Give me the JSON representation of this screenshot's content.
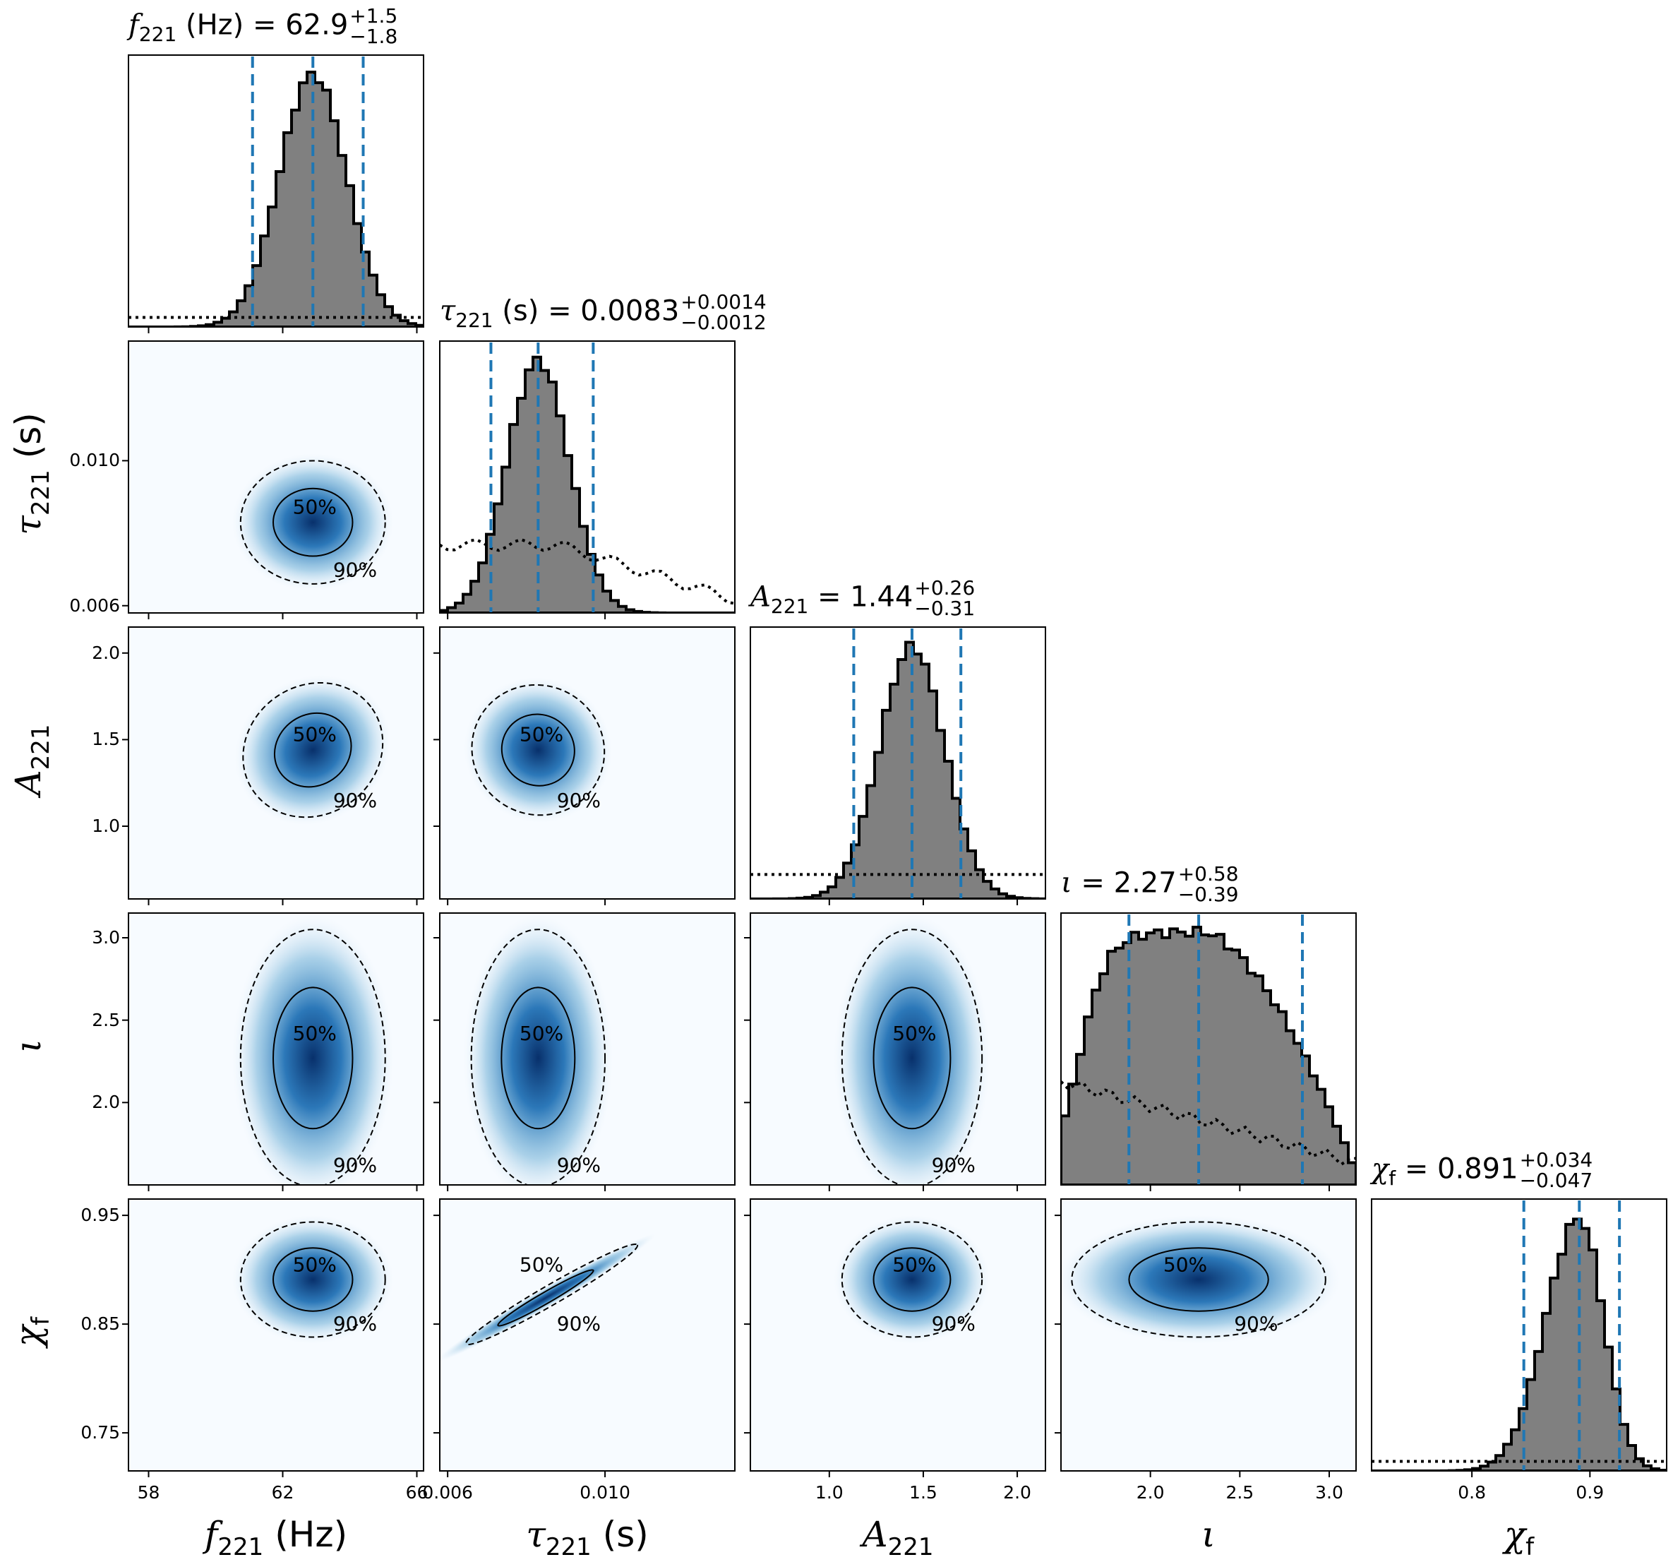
{
  "chart_data": {
    "type": "corner",
    "parameters": [
      {
        "key": "f221",
        "label_symbol": "f",
        "label_sub": "221",
        "label_unit": "(Hz)",
        "title_value": "62.9",
        "title_plus": "+1.5",
        "title_minus": "−1.8",
        "range": [
          57.4,
          66.2
        ],
        "ticks": [
          "58",
          "62",
          "66"
        ],
        "tick_values": [
          58,
          62,
          66
        ],
        "median": 62.9,
        "lower": 61.1,
        "upper": 64.4
      },
      {
        "key": "tau221",
        "label_symbol": "τ",
        "label_sub": "221",
        "label_unit": "(s)",
        "title_value": "0.0083",
        "title_plus": "+0.0014",
        "title_minus": "−0.0012",
        "range": [
          0.0058,
          0.0133
        ],
        "ticks": [
          "0.006",
          "0.010"
        ],
        "tick_values": [
          0.006,
          0.01
        ],
        "median": 0.0083,
        "lower": 0.0071,
        "upper": 0.0097
      },
      {
        "key": "A221",
        "label_symbol": "A",
        "label_sub": "221",
        "label_unit": "",
        "title_value": "1.44",
        "title_plus": "+0.26",
        "title_minus": "−0.31",
        "range": [
          0.58,
          2.15
        ],
        "ticks": [
          "1.0",
          "1.5",
          "2.0"
        ],
        "tick_values": [
          1.0,
          1.5,
          2.0
        ],
        "median": 1.44,
        "lower": 1.13,
        "upper": 1.7
      },
      {
        "key": "iota",
        "label_symbol": "ι",
        "label_sub": "",
        "label_unit": "",
        "title_value": "2.27",
        "title_plus": "+0.58",
        "title_minus": "−0.39",
        "range": [
          1.5,
          3.15
        ],
        "ticks": [
          "2.0",
          "2.5",
          "3.0"
        ],
        "tick_values": [
          2.0,
          2.5,
          3.0
        ],
        "median": 2.27,
        "lower": 1.88,
        "upper": 2.85
      },
      {
        "key": "chif",
        "label_symbol": "χ",
        "label_sub": "f",
        "label_unit": "",
        "title_value": "0.891",
        "title_plus": "+0.034",
        "title_minus": "−0.047",
        "range": [
          0.715,
          0.965
        ],
        "ticks": [
          "0.8",
          "0.9"
        ],
        "tick_values": [
          0.8,
          0.9
        ],
        "y_ticks": [
          "0.75",
          "0.85",
          "0.95"
        ],
        "y_tick_values": [
          0.75,
          0.85,
          0.95
        ],
        "median": 0.891,
        "lower": 0.844,
        "upper": 0.925
      }
    ],
    "contour_levels": [
      "50%",
      "90%"
    ],
    "colors": {
      "histogram_fill": "#808080",
      "histogram_edge": "#000000",
      "quantile_lines": "#1f77b4",
      "density": "#08519c",
      "prior": "#000000"
    }
  }
}
